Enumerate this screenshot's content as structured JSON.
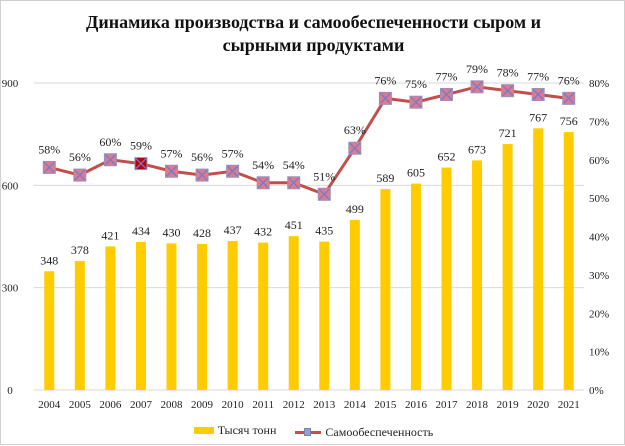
{
  "chart_data": {
    "type": "bar",
    "title": "Динамика производства и самообеспеченности сыром и сырными продуктами",
    "title_lines": [
      "Динамика производства и самообеспеченности сыром и",
      "сырными продуктами"
    ],
    "categories": [
      "2004",
      "2005",
      "2006",
      "2007",
      "2008",
      "2009",
      "2010",
      "2011",
      "2012",
      "2013",
      "2014",
      "2015",
      "2016",
      "2017",
      "2018",
      "2019",
      "2020",
      "2021"
    ],
    "series": [
      {
        "name": "Тысяч тонн",
        "type": "bar",
        "axis": "left",
        "color": "#FFCC00",
        "values": [
          348,
          378,
          421,
          434,
          430,
          428,
          437,
          432,
          451,
          435,
          499,
          589,
          605,
          652,
          673,
          721,
          767,
          756
        ]
      },
      {
        "name": "Самообеспеченность",
        "type": "line",
        "axis": "right",
        "color": "#C0504D",
        "marker_color": "#E07A8A",
        "values": [
          58,
          56,
          60,
          59,
          57,
          56,
          57,
          54,
          54,
          51,
          63,
          76,
          75,
          77,
          79,
          78,
          77,
          76
        ],
        "labels": [
          "58%",
          "56%",
          "60%",
          "59%",
          "57%",
          "56%",
          "57%",
          "54%",
          "54%",
          "51%",
          "63%",
          "76%",
          "75%",
          "77%",
          "79%",
          "78%",
          "77%",
          "76%"
        ]
      }
    ],
    "left_axis": {
      "ylim": [
        0,
        900
      ],
      "ticks": [
        "0",
        "300",
        "600",
        "900"
      ],
      "tick_values": [
        0,
        300,
        600,
        900
      ]
    },
    "right_axis": {
      "ylim": [
        0,
        80
      ],
      "ticks": [
        "0%",
        "10%",
        "20%",
        "30%",
        "40%",
        "50%",
        "60%",
        "70%",
        "80%"
      ],
      "tick_values": [
        0,
        10,
        20,
        30,
        40,
        50,
        60,
        70,
        80
      ]
    },
    "grid": true,
    "legend_position": "bottom",
    "legend": [
      "Тысяч тонн",
      "Самообеспеченность"
    ]
  }
}
